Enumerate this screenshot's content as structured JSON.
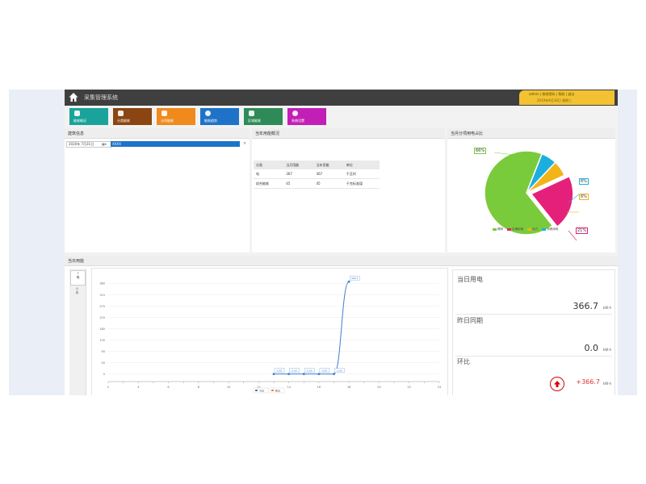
{
  "header": {
    "title": "采集管理系统",
    "user_line1": "admin | 修改密码 | 帮助 | 退出",
    "user_line2": "2019年9月18日 星期三"
  },
  "nav": [
    {
      "label": "能耗概况",
      "color": "#1aa39a"
    },
    {
      "label": "分类能耗",
      "color": "#8b4513"
    },
    {
      "label": "分项能耗",
      "color": "#f08a1c"
    },
    {
      "label": "能耗趋势",
      "color": "#1e73c8"
    },
    {
      "label": "区域能耗",
      "color": "#2e8b57"
    },
    {
      "label": "系统设置",
      "color": "#c21fb7"
    }
  ],
  "panels": {
    "tree_title": "建筑信息",
    "usage_title": "当年用能概况",
    "pie_title": "当月分项用电占比",
    "daily_title": "当日用能"
  },
  "tree": {
    "date_value": "2020年 7月31日",
    "selected_node": "XXXX"
  },
  "usage_table": {
    "headers": [
      "分类",
      "当月用能",
      "当年用能",
      "单位"
    ],
    "rows": [
      [
        "电",
        "367",
        "367",
        "千瓦时"
      ],
      [
        "综合能耗",
        "45",
        "45",
        "千克标准煤"
      ]
    ]
  },
  "pie": {
    "labels": [
      "66%",
      "21%",
      "6%",
      "6%"
    ],
    "slices": [
      {
        "name": "照明",
        "value": 66,
        "color": "#7acb3c"
      },
      {
        "name": "空调用电",
        "value": 21,
        "color": "#e5207a"
      },
      {
        "name": "动力",
        "value": 6,
        "color": "#f2b418"
      },
      {
        "name": "特殊用电",
        "value": 6,
        "color": "#1daee0"
      }
    ],
    "legend": [
      "照明",
      "空调用电",
      "动力",
      "特殊用电"
    ]
  },
  "daily": {
    "side_tabs": [
      "电",
      "水"
    ],
    "stats": {
      "today_label": "当日用电",
      "today_value": "366.7",
      "unit": "kW·h",
      "yesterday_label": "昨日同期",
      "yesterday_value": "0.0",
      "ratio_label": "环比",
      "ratio_value": "+366.7"
    }
  },
  "chart_data": {
    "type": "line",
    "x": [
      13,
      14,
      15,
      16,
      17,
      18
    ],
    "categories": [
      "2",
      "3",
      "4",
      "5",
      "6",
      "7",
      "8",
      "9",
      "10",
      "11",
      "12",
      "13",
      "14",
      "15",
      "16",
      "17",
      "18",
      "19",
      "20",
      "21",
      "22",
      "23",
      "24"
    ],
    "ylim": [
      -30,
      380
    ],
    "yticks": [
      0,
      45,
      90,
      135,
      180,
      225,
      270,
      315,
      360
    ],
    "series": [
      {
        "name": "今日",
        "values": [
          0.0,
          0.0,
          0.0,
          0.0,
          0.0,
          366.7
        ],
        "labels": [
          "0.00",
          "0.00",
          "0.00",
          "0.00",
          "0.00",
          "366.7"
        ],
        "color": "#3d7fd1"
      }
    ],
    "legend": [
      "今日",
      "昨日"
    ]
  }
}
